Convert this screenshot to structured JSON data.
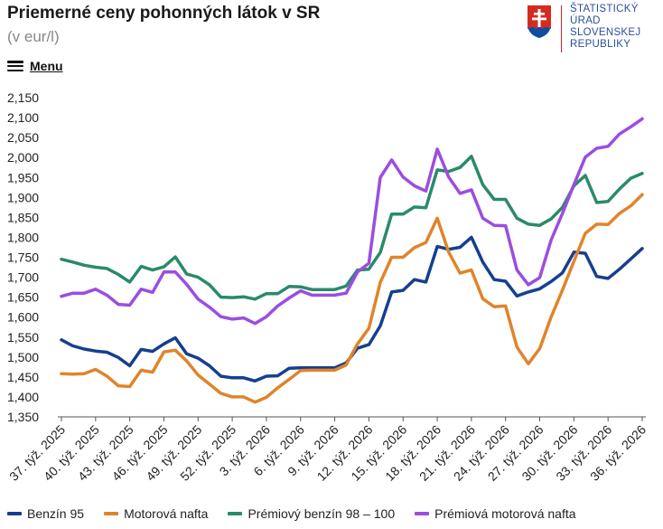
{
  "header": {
    "title": "Priemerné ceny pohonných látok v SR",
    "subtitle": "(v eur/l)",
    "menu_label": "Menu"
  },
  "logo": {
    "icon": "slovak-coat-of-arms-icon",
    "lines": [
      "ŠTATISTICKÝ",
      "ÚRAD",
      "SLOVENSKEJ",
      "REPUBLIKY"
    ]
  },
  "colors": {
    "Benzín 95": "#163f8f",
    "Motorová nafta": "#e0842a",
    "Prémiový benzín 98 – 100": "#2a8a6a",
    "Prémiová motorová nafta": "#9b4de0"
  },
  "chart_data": {
    "type": "line",
    "title": "Priemerné ceny pohonných látok v SR",
    "subtitle": "(v eur/l)",
    "ylim": [
      1.35,
      2.15
    ],
    "yticks": [
      "1,350",
      "1,400",
      "1,450",
      "1,500",
      "1,550",
      "1,600",
      "1,650",
      "1,700",
      "1,750",
      "1,800",
      "1,850",
      "1,900",
      "1,950",
      "2,000",
      "2,050",
      "2,100",
      "2,150"
    ],
    "x_tick_labels": [
      "37. týž. 2025",
      "40. týž. 2025",
      "43. týž. 2025",
      "46. týž. 2025",
      "49. týž. 2025",
      "52. týž. 2025",
      "3. týž. 2026",
      "6. týž. 2026",
      "9. týž. 2026",
      "12. týž. 2026",
      "15. týž. 2026",
      "18. týž. 2026",
      "21. týž. 2026",
      "24. týž. 2026",
      "27. týž. 2026",
      "30. týž. 2026",
      "33. týž. 2026",
      "36. týž. 2026"
    ],
    "grid": false,
    "legend_position": "bottom",
    "series": [
      {
        "name": "Benzín 95",
        "values": [
          1.543,
          1.528,
          1.52,
          1.515,
          1.512,
          1.499,
          1.478,
          1.519,
          1.514,
          1.533,
          1.548,
          1.508,
          1.497,
          1.478,
          1.452,
          1.448,
          1.448,
          1.44,
          1.452,
          1.453,
          1.472,
          1.473,
          1.473,
          1.473,
          1.473,
          1.485,
          1.522,
          1.531,
          1.578,
          1.663,
          1.667,
          1.694,
          1.688,
          1.777,
          1.77,
          1.775,
          1.8,
          1.738,
          1.694,
          1.69,
          1.653,
          1.663,
          1.671,
          1.689,
          1.711,
          1.763,
          1.76,
          1.702,
          1.697,
          1.72,
          1.746,
          1.772
        ]
      },
      {
        "name": "Motorová nafta",
        "values": [
          1.458,
          1.457,
          1.458,
          1.469,
          1.452,
          1.428,
          1.426,
          1.467,
          1.462,
          1.513,
          1.517,
          1.49,
          1.455,
          1.432,
          1.409,
          1.4,
          1.4,
          1.387,
          1.399,
          1.423,
          1.444,
          1.466,
          1.467,
          1.467,
          1.467,
          1.48,
          1.533,
          1.572,
          1.687,
          1.75,
          1.75,
          1.774,
          1.787,
          1.848,
          1.763,
          1.71,
          1.718,
          1.646,
          1.626,
          1.628,
          1.525,
          1.483,
          1.521,
          1.6,
          1.668,
          1.74,
          1.81,
          1.833,
          1.832,
          1.86,
          1.879,
          1.907
        ]
      },
      {
        "name": "Prémiový benzín 98 – 100",
        "values": [
          1.745,
          1.738,
          1.73,
          1.725,
          1.722,
          1.707,
          1.688,
          1.727,
          1.718,
          1.726,
          1.751,
          1.708,
          1.7,
          1.681,
          1.65,
          1.649,
          1.651,
          1.645,
          1.659,
          1.659,
          1.677,
          1.676,
          1.669,
          1.669,
          1.669,
          1.678,
          1.718,
          1.72,
          1.762,
          1.858,
          1.858,
          1.876,
          1.874,
          1.969,
          1.965,
          1.975,
          2.003,
          1.932,
          1.895,
          1.895,
          1.848,
          1.833,
          1.83,
          1.846,
          1.875,
          1.929,
          1.955,
          1.887,
          1.89,
          1.921,
          1.948,
          1.96
        ]
      },
      {
        "name": "Prémiová motorová nafta",
        "values": [
          1.652,
          1.66,
          1.66,
          1.67,
          1.655,
          1.632,
          1.63,
          1.67,
          1.662,
          1.713,
          1.713,
          1.682,
          1.645,
          1.625,
          1.601,
          1.595,
          1.598,
          1.584,
          1.601,
          1.628,
          1.648,
          1.666,
          1.655,
          1.655,
          1.655,
          1.66,
          1.713,
          1.735,
          1.95,
          1.994,
          1.951,
          1.929,
          1.916,
          2.021,
          1.951,
          1.91,
          1.919,
          1.848,
          1.83,
          1.829,
          1.718,
          1.681,
          1.699,
          1.793,
          1.86,
          1.932,
          2.001,
          2.023,
          2.028,
          2.059,
          2.077,
          2.097
        ]
      }
    ]
  }
}
